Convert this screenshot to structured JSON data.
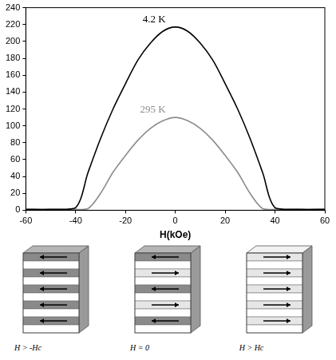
{
  "chart_data": {
    "type": "line",
    "x_label": "H(kOe)",
    "xlim": [
      -60,
      60
    ],
    "xticks": [
      -60,
      -40,
      -20,
      0,
      20,
      40,
      60
    ],
    "ylim": [
      0,
      240
    ],
    "yticks": [
      0,
      20,
      40,
      60,
      80,
      100,
      120,
      140,
      160,
      180,
      200,
      220,
      240
    ],
    "grid": false,
    "x": [
      -60,
      -50,
      -40,
      -35,
      -30,
      -25,
      -20,
      -15,
      -10,
      -5,
      0,
      5,
      10,
      15,
      20,
      25,
      30,
      35,
      40,
      50,
      60
    ],
    "series": [
      {
        "name": "4.2 K",
        "color": "#000000",
        "values": [
          1,
          1,
          3,
          45,
          85,
          120,
          150,
          178,
          198,
          212,
          217,
          212,
          198,
          178,
          150,
          120,
          85,
          45,
          3,
          1,
          1
        ]
      },
      {
        "name": "295 K",
        "color": "#8c8c8c",
        "values": [
          1,
          1,
          1,
          2,
          20,
          45,
          65,
          83,
          97,
          106,
          110,
          106,
          97,
          83,
          65,
          45,
          20,
          2,
          1,
          1,
          1
        ]
      }
    ]
  },
  "diagram": {
    "panels": [
      {
        "label": "H > -Hc"
      },
      {
        "label": "H = 0"
      },
      {
        "label": "H > Hc"
      }
    ]
  }
}
